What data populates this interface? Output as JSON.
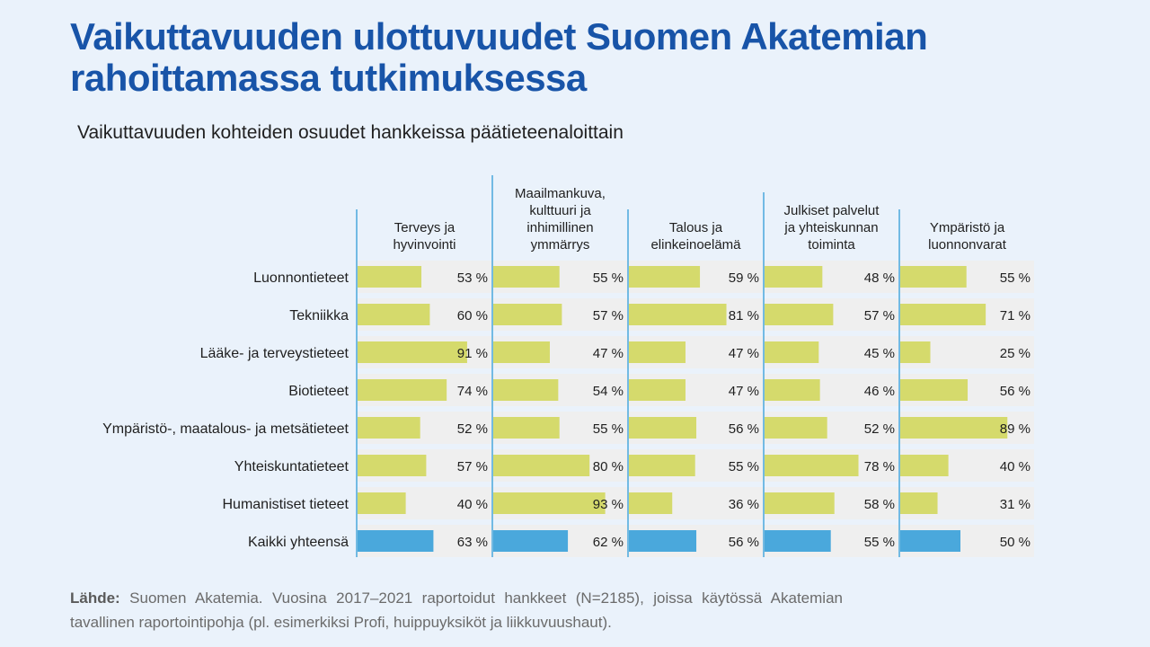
{
  "title": "Vaikuttavuuden ulottuvuudet Suomen Akatemian rahoittamassa tutkimuksessa",
  "subtitle": "Vaikuttavuuden kohteiden osuudet hankkeissa päätieteenaloittain",
  "source": {
    "label": "Lähde:",
    "text": " Suomen Akatemia. Vuosina 2017–2021 raportoidut hankkeet (N=2185), joissa käytössä Akatemian tavallinen raportointipohja (pl. esimerkiksi Profi, huippuyksiköt ja liikkuvuushaut)."
  },
  "colors": {
    "field_bar": "#d5da6c",
    "total_bar": "#4aa8dc",
    "row_bg": "#efefef",
    "divider": "#4aa8dc",
    "title": "#1854a8"
  },
  "chart_data": {
    "type": "bar",
    "orientation": "horizontal",
    "unit": "%",
    "xlim": [
      0,
      100
    ],
    "panels": [
      {
        "name": "Terveys ja hyvinvointi",
        "label_lines": [
          "Terveys ja",
          "hyvinvointi"
        ]
      },
      {
        "name": "Maailmankuva, kulttuuri ja inhimillinen ymmärrys",
        "label_lines": [
          "Maailmankuva,",
          "kulttuuri ja",
          "inhimillinen",
          "ymmärrys"
        ]
      },
      {
        "name": "Talous ja elinkeinoelämä",
        "label_lines": [
          "Talous ja",
          "elinkeinoelämä"
        ]
      },
      {
        "name": "Julkiset palvelut ja yhteiskunnan toiminta",
        "label_lines": [
          "Julkiset palvelut",
          "ja yhteiskunnan",
          "toiminta"
        ]
      },
      {
        "name": "Ympäristö ja luonnonvarat",
        "label_lines": [
          "Ympäristö ja",
          "luonnonvarat"
        ]
      }
    ],
    "categories": [
      "Luonnontieteet",
      "Tekniikka",
      "Lääke- ja terveystieteet",
      "Biotieteet",
      "Ympäristö-, maatalous- ja metsätieteet",
      "Yhteiskuntatieteet",
      "Humanistiset tieteet",
      "Kaikki yhteensä"
    ],
    "total_category": "Kaikki yhteensä",
    "values": [
      [
        53,
        55,
        59,
        48,
        55
      ],
      [
        60,
        57,
        81,
        57,
        71
      ],
      [
        91,
        47,
        47,
        45,
        25
      ],
      [
        74,
        54,
        47,
        46,
        56
      ],
      [
        52,
        55,
        56,
        52,
        89
      ],
      [
        57,
        80,
        55,
        78,
        40
      ],
      [
        40,
        93,
        36,
        58,
        31
      ],
      [
        63,
        62,
        56,
        55,
        50
      ]
    ]
  }
}
